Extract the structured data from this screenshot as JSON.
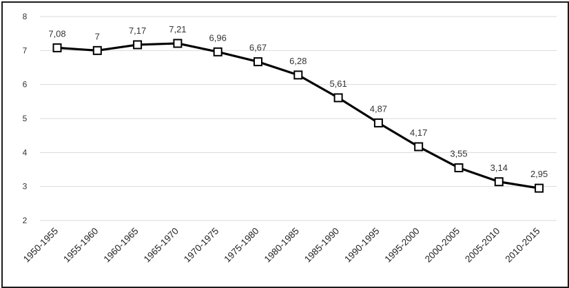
{
  "chart_data": {
    "type": "line",
    "categories": [
      "1950-1955",
      "1955-1960",
      "1960-1965",
      "1965-1970",
      "1970-1975",
      "1975-1980",
      "1980-1985",
      "1985-1990",
      "1990-1995",
      "1995-2000",
      "2000-2005",
      "2005-2010",
      "2010-2015"
    ],
    "series": [
      {
        "values": [
          7.08,
          7,
          7.17,
          7.21,
          6.96,
          6.67,
          6.28,
          5.61,
          4.87,
          4.17,
          3.55,
          3.14,
          2.95
        ],
        "labels": [
          "7,08",
          "7",
          "7,17",
          "7,21",
          "6,96",
          "6,67",
          "6,28",
          "5,61",
          "4,87",
          "4,17",
          "3,55",
          "3,14",
          "2,95"
        ],
        "color": "#000000",
        "marker": "square-hollow"
      }
    ],
    "y_ticks": [
      "2",
      "3",
      "4",
      "5",
      "6",
      "7",
      "8"
    ],
    "ylim": [
      2,
      8
    ],
    "grid": true,
    "title": "",
    "xlabel": "",
    "ylabel": ""
  }
}
